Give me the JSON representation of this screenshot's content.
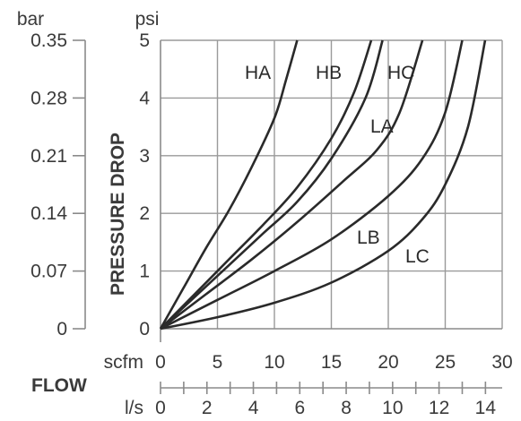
{
  "chart_data": {
    "type": "line",
    "ylabel": "PRESSURE DROP",
    "xlabel": "FLOW",
    "y_units": {
      "primary": "psi",
      "secondary": "bar"
    },
    "x_units": {
      "primary": "scfm",
      "secondary": "l/s"
    },
    "xlim": [
      0,
      30
    ],
    "ylim": [
      0,
      5
    ],
    "grid": true,
    "x_ticks": [
      "0",
      "5",
      "10",
      "15",
      "20",
      "25",
      "30"
    ],
    "y_ticks_psi": [
      "0",
      "1",
      "2",
      "3",
      "4",
      "5"
    ],
    "y_ticks_bar": [
      "0",
      "0.07",
      "0.14",
      "0.21",
      "0.28",
      "0.35"
    ],
    "x_ticks_ls": [
      "0",
      "2",
      "4",
      "6",
      "8",
      "10",
      "12",
      "14"
    ],
    "series": [
      {
        "name": "HA",
        "x": [
          0,
          2,
          4,
          6,
          8,
          10,
          11,
          12
        ],
        "y": [
          0,
          0.7,
          1.4,
          2.05,
          2.8,
          3.65,
          4.3,
          5.0
        ]
      },
      {
        "name": "HB",
        "x": [
          0,
          3,
          6,
          9,
          12,
          15,
          17,
          18.5
        ],
        "y": [
          0,
          0.6,
          1.2,
          1.8,
          2.45,
          3.3,
          4.1,
          5.0
        ]
      },
      {
        "name": "HC",
        "x": [
          0,
          3,
          6,
          9,
          12,
          15,
          18,
          19.5
        ],
        "y": [
          0,
          0.55,
          1.1,
          1.65,
          2.2,
          2.95,
          4.0,
          5.0
        ]
      },
      {
        "name": "LA",
        "x": [
          0,
          4,
          8,
          12,
          16,
          19,
          21,
          23
        ],
        "y": [
          0,
          0.6,
          1.2,
          1.85,
          2.55,
          3.1,
          3.75,
          5.0
        ]
      },
      {
        "name": "LB",
        "x": [
          0,
          5,
          10,
          15,
          20,
          23,
          25,
          26.5
        ],
        "y": [
          0,
          0.5,
          1.0,
          1.55,
          2.3,
          2.95,
          3.75,
          5.0
        ]
      },
      {
        "name": "LC",
        "x": [
          0,
          5,
          10,
          15,
          20,
          23,
          25,
          27,
          28.5
        ],
        "y": [
          0,
          0.2,
          0.45,
          0.8,
          1.35,
          1.9,
          2.5,
          3.5,
          5.0
        ]
      }
    ]
  }
}
